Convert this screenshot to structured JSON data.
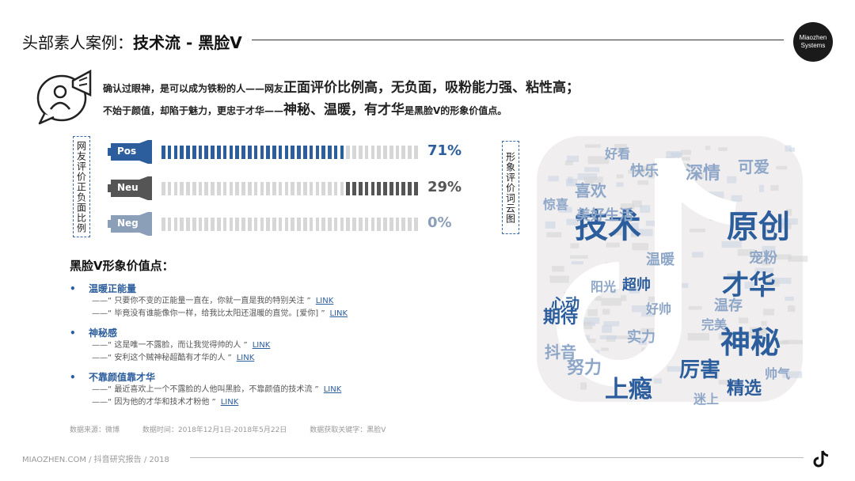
{
  "header": {
    "title_prefix": "头部素人案例：",
    "title_bold": "技术流 - 黑脸V",
    "logo_text_1": "Miaozhen",
    "logo_text_2": "Systems"
  },
  "intro": {
    "line1_small": "确认过眼神，是可以成为铁粉的人——网友",
    "line1_big": "正面评价比例高，无负面，吸粉能力强、粘性高；",
    "line2_small_a": "不始于颜值，却陷于魅力，更忠于才华——",
    "line2_big": "神秘、温暖，有才华",
    "line2_small_b": "是黑脸V的形象价值点。"
  },
  "labels": {
    "left_vertical": "网友评价正负面比例",
    "right_vertical": "形象评价词云图"
  },
  "sentiment": [
    {
      "tag": "Pos",
      "percent_text": "71%",
      "fill": 0.71,
      "color": "#2c5d9c",
      "mega_color": "#2c5d9c"
    },
    {
      "tag": "Neu",
      "percent_text": "29%",
      "fill": 0.29,
      "color": "#555555",
      "mega_color": "#555555"
    },
    {
      "tag": "Neg",
      "percent_text": "0%",
      "fill": 0.0,
      "color": "#8c9fb8",
      "mega_color": "#8c9fb8"
    }
  ],
  "value_points": {
    "title": "黑脸V形象价值点：",
    "items": [
      {
        "bullet": "•",
        "heading": "温暖正能量",
        "quotes": [
          {
            "text": "——“ 只要你不变的正能量一直在，你就一直是我的特别关注 ”",
            "link": "LINK"
          },
          {
            "text": "——“ 毕竟没有谁能像你一样，给我比太阳还温暖的直觉。[爱你] ”",
            "link": "LINK"
          }
        ]
      },
      {
        "bullet": "•",
        "heading": "神秘感",
        "quotes": [
          {
            "text": "——“ 这是唯一不露脸，而让我觉得帅的人 ”",
            "link": "LINK"
          },
          {
            "text": "——“ 安利这个贼神秘超酷有才华的人 ”",
            "link": "LINK"
          }
        ]
      },
      {
        "bullet": "•",
        "heading": "不靠颜值靠才华",
        "quotes": [
          {
            "text": "——“ 最近喜欢上一个不露脸的人他叫黑脸，不靠颜值的技术流 ”",
            "link": "LINK"
          },
          {
            "text": "——“ 因为他的才华和技术才粉他 ”",
            "link": "LINK"
          }
        ]
      }
    ]
  },
  "source": {
    "data_source": "数据来源：微博",
    "data_time": "数据时间：2018年12月1日-2018年5月22日",
    "keyword": "数据获取关键字：黑脸V"
  },
  "footer": {
    "text": "MIAOZHEN.COM / 抖音研究报告 / 2018"
  },
  "word_cloud": {
    "words": [
      {
        "text": "技术",
        "color": "#2c5d9c"
      },
      {
        "text": "原创",
        "color": "#2c5d9c"
      },
      {
        "text": "才华",
        "color": "#2c5d9c"
      },
      {
        "text": "神秘",
        "color": "#2c5d9c"
      },
      {
        "text": "上瘾",
        "color": "#2c5d9c"
      },
      {
        "text": "厉害",
        "color": "#2c5d9c"
      },
      {
        "text": "喜欢",
        "color": "#8ea7c8"
      },
      {
        "text": "期待",
        "color": "#2c5d9c"
      },
      {
        "text": "抖音",
        "color": "#8ea7c8"
      },
      {
        "text": "精选",
        "color": "#2c5d9c"
      },
      {
        "text": "好看",
        "color": "#8ea7c8"
      },
      {
        "text": "美好生活",
        "color": "#8ea7c8"
      },
      {
        "text": "可爱",
        "color": "#8ea7c8"
      },
      {
        "text": "温暖",
        "color": "#8ea7c8"
      },
      {
        "text": "心动",
        "color": "#2c5d9c"
      },
      {
        "text": "宠粉",
        "color": "#8ea7c8"
      },
      {
        "text": "超帅",
        "color": "#2c5d9c"
      },
      {
        "text": "温存",
        "color": "#8ea7c8"
      },
      {
        "text": "努力",
        "color": "#8ea7c8"
      },
      {
        "text": "帅气",
        "color": "#8ea7c8"
      },
      {
        "text": "快乐",
        "color": "#8ea7c8"
      },
      {
        "text": "深情",
        "color": "#8ea7c8"
      },
      {
        "text": "惊喜",
        "color": "#8ea7c8"
      },
      {
        "text": "完美",
        "color": "#8ea7c8"
      },
      {
        "text": "实力",
        "color": "#8ea7c8"
      },
      {
        "text": "阳光",
        "color": "#8ea7c8"
      },
      {
        "text": "迷上",
        "color": "#8ea7c8"
      },
      {
        "text": "好帅",
        "color": "#8ea7c8"
      }
    ]
  }
}
